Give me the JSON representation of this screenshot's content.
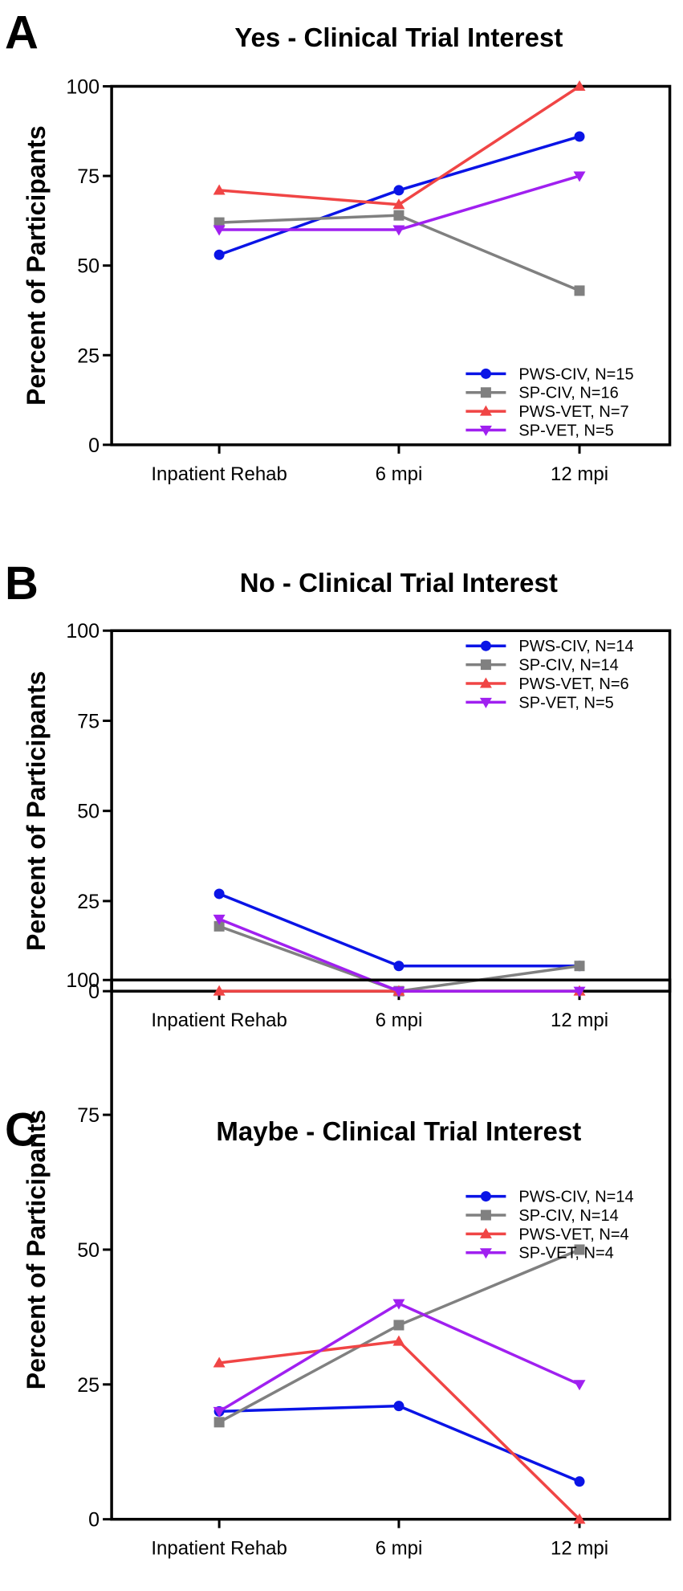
{
  "chart_data": [
    {
      "panel": "A",
      "type": "line",
      "title": "Yes - Clinical Trial Interest",
      "xlabel": "",
      "ylabel": "Percent of Participants",
      "categories": [
        "Inpatient Rehab",
        "6 mpi",
        "12 mpi"
      ],
      "ylim": [
        0,
        100
      ],
      "yticks": [
        0,
        25,
        50,
        75,
        100
      ],
      "legend_position": "bottom-right",
      "series": [
        {
          "name": "PWS-CIV, N=15",
          "color": "#0a14e6",
          "marker": "circle",
          "values": [
            53,
            71,
            86
          ]
        },
        {
          "name": "SP-CIV, N=16",
          "color": "#808080",
          "marker": "square",
          "values": [
            62,
            64,
            43
          ]
        },
        {
          "name": "PWS-VET, N=7",
          "color": "#f04545",
          "marker": "triangle-up",
          "values": [
            71,
            67,
            100
          ]
        },
        {
          "name": "SP-VET, N=5",
          "color": "#a020f0",
          "marker": "triangle-down",
          "values": [
            60,
            60,
            75
          ]
        }
      ]
    },
    {
      "panel": "B",
      "type": "line",
      "title": "No - Clinical Trial Interest",
      "xlabel": "",
      "ylabel": "Percent of Participants",
      "categories": [
        "Inpatient Rehab",
        "6 mpi",
        "12 mpi"
      ],
      "ylim": [
        0,
        100
      ],
      "yticks": [
        0,
        25,
        50,
        75,
        100
      ],
      "legend_position": "top-right",
      "series": [
        {
          "name": "PWS-CIV, N=14",
          "color": "#0a14e6",
          "marker": "circle",
          "values": [
            27,
            7,
            7
          ]
        },
        {
          "name": "SP-CIV, N=14",
          "color": "#808080",
          "marker": "square",
          "values": [
            18,
            0,
            7
          ]
        },
        {
          "name": "PWS-VET, N=6",
          "color": "#f04545",
          "marker": "triangle-up",
          "values": [
            0,
            0,
            0
          ]
        },
        {
          "name": "SP-VET, N=5",
          "color": "#a020f0",
          "marker": "triangle-down",
          "values": [
            20,
            0,
            0
          ]
        }
      ]
    },
    {
      "panel": "C",
      "type": "line",
      "title": "Maybe - Clinical Trial Interest",
      "xlabel": "",
      "ylabel": "Percent of Participants",
      "categories": [
        "Inpatient Rehab",
        "6 mpi",
        "12 mpi"
      ],
      "ylim": [
        0,
        100
      ],
      "yticks": [
        0,
        25,
        50,
        75,
        100
      ],
      "legend_position": "top-right",
      "series": [
        {
          "name": "PWS-CIV, N=14",
          "color": "#0a14e6",
          "marker": "circle",
          "values": [
            20,
            21,
            7
          ]
        },
        {
          "name": "SP-CIV, N=14",
          "color": "#808080",
          "marker": "square",
          "values": [
            18,
            36,
            50
          ]
        },
        {
          "name": "PWS-VET, N=4",
          "color": "#f04545",
          "marker": "triangle-up",
          "values": [
            29,
            33,
            0
          ]
        },
        {
          "name": "SP-VET, N=4",
          "color": "#a020f0",
          "marker": "triangle-down",
          "values": [
            20,
            40,
            25
          ]
        }
      ]
    }
  ]
}
